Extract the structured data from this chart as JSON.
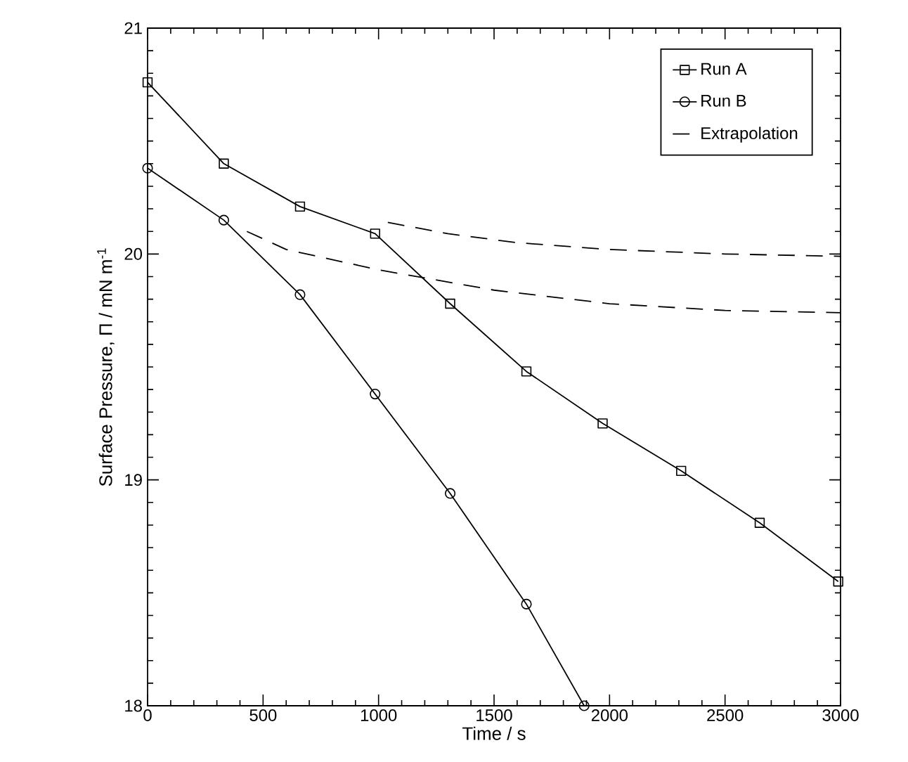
{
  "chart_data": {
    "type": "line",
    "xlabel": "Time / s",
    "ylabel": "Surface Pressure, Π / mN m$^{-1}$",
    "xlim": [
      0,
      3000
    ],
    "ylim": [
      18,
      21
    ],
    "xticks": [
      0,
      500,
      1000,
      1500,
      2000,
      2500,
      3000
    ],
    "yticks": [
      18,
      19,
      20,
      21
    ],
    "legend": "top right",
    "grid": false,
    "series": [
      {
        "name": "Run A",
        "color": "#000000",
        "marker": "square",
        "line_style": "solid",
        "x": [
          0,
          330,
          660,
          985,
          1310,
          1640,
          1970,
          2310,
          2650,
          2990
        ],
        "values": [
          20.76,
          20.4,
          20.21,
          20.09,
          19.78,
          19.48,
          19.25,
          19.04,
          18.81,
          18.55
        ]
      },
      {
        "name": "Run B",
        "color": "#000000",
        "marker": "circle",
        "line_style": "solid",
        "x": [
          0,
          330,
          660,
          985,
          1310,
          1640,
          1890
        ],
        "values": [
          20.38,
          20.15,
          19.82,
          19.38,
          18.94,
          18.45,
          18.0
        ]
      },
      {
        "name": "Extrapolation",
        "color": "#000000",
        "marker": "none",
        "line_style": "dashed",
        "x": [
          1040,
          1300,
          1600,
          2000,
          2500,
          3000
        ],
        "values": [
          20.14,
          20.09,
          20.05,
          20.02,
          20.0,
          19.99
        ]
      },
      {
        "color": "#000000",
        "marker": "none",
        "line_style": "dashed",
        "x": [
          430,
          600,
          1000,
          1500,
          2000,
          2500,
          3000
        ],
        "values": [
          20.1,
          20.02,
          19.93,
          19.84,
          19.78,
          19.75,
          19.74
        ]
      }
    ]
  }
}
